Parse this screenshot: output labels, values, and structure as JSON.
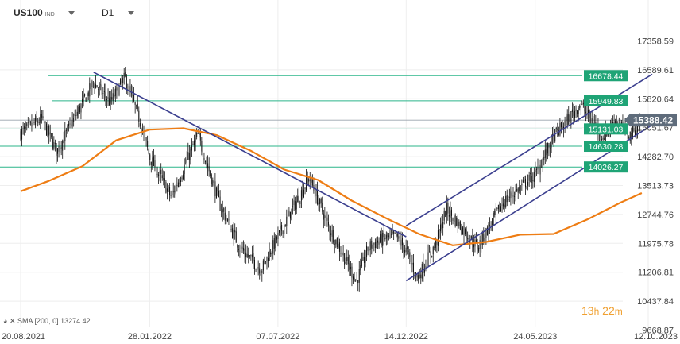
{
  "header": {
    "symbol": "US100",
    "symbol_type": "IND",
    "timeframe": "D1"
  },
  "sma_legend": {
    "label": "SMA",
    "params": "[200, 0]",
    "value": "13274.42"
  },
  "countdown": {
    "hours": "13",
    "hours_unit": "h",
    "minutes": "22",
    "minutes_unit": "m"
  },
  "colors": {
    "level_line": "#2bb58a",
    "level_badge": "#1fa476",
    "trend_line": "#3b3f8f",
    "sma": "#ee7d14",
    "candles": "#111111",
    "current_price_badge": "#5f6c7b",
    "grid": "#eeeeee"
  },
  "chart_data": {
    "type": "candlestick",
    "instrument": "US100",
    "timeframe": "D1",
    "y_axis": {
      "ylim": [
        9300,
        18000
      ],
      "ticks": [
        "17358.59",
        "16589.61",
        "15820.64",
        "15051.67",
        "14282.70",
        "13513.73",
        "12744.76",
        "11975.78",
        "11206.81",
        "10437.84",
        "9668.87"
      ]
    },
    "x_axis": {
      "tick_labels": [
        "20.08.2021",
        "28.01.2022",
        "07.07.2022",
        "14.12.2022",
        "24.05.2023",
        "12.10.2023"
      ]
    },
    "current_price": "15388.42",
    "horizontal_levels": [
      "16678.44",
      "15949.83",
      "15131.03",
      "14630.28",
      "14026.27"
    ],
    "close_path": [
      [
        "2021-08-20",
        15010
      ],
      [
        "2021-09-15",
        15420
      ],
      [
        "2021-10-04",
        14480
      ],
      [
        "2021-10-25",
        15400
      ],
      [
        "2021-11-19",
        16480
      ],
      [
        "2021-12-10",
        15900
      ],
      [
        "2021-12-28",
        16620
      ],
      [
        "2022-01-18",
        15200
      ],
      [
        "2022-01-28",
        14300
      ],
      [
        "2022-02-24",
        13150
      ],
      [
        "2022-03-29",
        14950
      ],
      [
        "2022-04-26",
        12900
      ],
      [
        "2022-05-20",
        11700
      ],
      [
        "2022-06-16",
        11050
      ],
      [
        "2022-07-07",
        12000
      ],
      [
        "2022-08-15",
        13720
      ],
      [
        "2022-09-07",
        12350
      ],
      [
        "2022-10-13",
        10700
      ],
      [
        "2022-10-28",
        11700
      ],
      [
        "2022-11-16",
        11950
      ],
      [
        "2022-12-01",
        12000
      ],
      [
        "2022-12-14",
        11600
      ],
      [
        "2022-12-28",
        10800
      ],
      [
        "2023-01-20",
        11800
      ],
      [
        "2023-02-02",
        12800
      ],
      [
        "2023-03-13",
        11700
      ],
      [
        "2023-04-14",
        13000
      ],
      [
        "2023-05-24",
        13800
      ],
      [
        "2023-06-16",
        14900
      ],
      [
        "2023-07-19",
        15850
      ],
      [
        "2023-08-17",
        14900
      ],
      [
        "2023-08-31",
        15400
      ],
      [
        "2023-09-20",
        14950
      ],
      [
        "2023-10-04",
        15388
      ]
    ],
    "series": [
      {
        "name": "SMA",
        "period": 200,
        "points": [
          [
            "2021-08-20",
            13320
          ],
          [
            "2021-09-24",
            13620
          ],
          [
            "2021-11-05",
            14050
          ],
          [
            "2021-12-17",
            14800
          ],
          [
            "2022-01-28",
            15110
          ],
          [
            "2022-03-11",
            15150
          ],
          [
            "2022-04-22",
            14950
          ],
          [
            "2022-06-03",
            14500
          ],
          [
            "2022-07-15",
            13950
          ],
          [
            "2022-08-26",
            13650
          ],
          [
            "2022-10-07",
            13050
          ],
          [
            "2022-11-18",
            12550
          ],
          [
            "2022-12-30",
            12080
          ],
          [
            "2023-02-10",
            11750
          ],
          [
            "2023-03-24",
            11850
          ],
          [
            "2023-05-05",
            12060
          ],
          [
            "2023-06-16",
            12080
          ],
          [
            "2023-07-28",
            12500
          ],
          [
            "2023-09-08",
            13000
          ],
          [
            "2023-10-04",
            13270
          ]
        ]
      }
    ],
    "trend_lines": [
      {
        "name": "downtrend",
        "from": [
          "2021-11-19",
          16780
        ],
        "to": [
          "2022-12-14",
          12000
        ]
      },
      {
        "name": "channel-upper",
        "from": [
          "2022-12-14",
          12320
        ],
        "to": [
          "2023-10-17",
          16720
        ]
      },
      {
        "name": "channel-lower",
        "from": [
          "2022-12-14",
          10720
        ],
        "to": [
          "2023-10-17",
          15250
        ]
      }
    ]
  }
}
